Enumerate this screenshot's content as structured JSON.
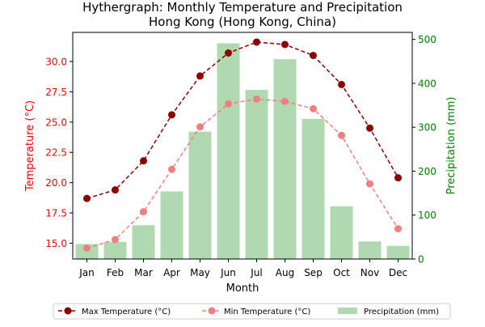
{
  "chart_data": {
    "type": "bar+line",
    "title_line1": "Hythergraph: Monthly Temperature and Precipitation",
    "title_line2": "Hong Kong (Hong Kong, China)",
    "xlabel": "Month",
    "ylabel_left": "Temperature (°C)",
    "ylabel_right": "Precipitation (mm)",
    "categories": [
      "Jan",
      "Feb",
      "Mar",
      "Apr",
      "May",
      "Jun",
      "Jul",
      "Aug",
      "Sep",
      "Oct",
      "Nov",
      "Dec"
    ],
    "temp_axis": {
      "ylim": [
        13.7,
        32.4
      ],
      "ticks": [
        15.0,
        17.5,
        20.0,
        22.5,
        25.0,
        27.5,
        30.0
      ],
      "tick_labels": [
        "15.0",
        "17.5",
        "20.0",
        "22.5",
        "25.0",
        "27.5",
        "30.0"
      ]
    },
    "precip_axis": {
      "ylim": [
        0,
        516
      ],
      "ticks": [
        0,
        100,
        200,
        300,
        400,
        500
      ],
      "tick_labels": [
        "0",
        "100",
        "200",
        "300",
        "400",
        "500"
      ]
    },
    "series": [
      {
        "name": "Max Temperature (°C)",
        "axis": "temp",
        "kind": "line",
        "style": "dashed",
        "color": "#8b0000",
        "values": [
          18.7,
          19.4,
          21.8,
          25.6,
          28.8,
          30.7,
          31.6,
          31.4,
          30.5,
          28.1,
          24.5,
          20.4
        ]
      },
      {
        "name": "Min Temperature (°C)",
        "axis": "temp",
        "kind": "line",
        "style": "dashed",
        "color": "#f08080",
        "values": [
          14.6,
          15.3,
          17.6,
          21.1,
          24.6,
          26.5,
          26.9,
          26.7,
          26.1,
          23.9,
          19.9,
          16.2
        ]
      },
      {
        "name": "Precipitation (mm)",
        "axis": "precip",
        "kind": "bar",
        "color": "#b0d9b1",
        "values": [
          34,
          39,
          77,
          154,
          290,
          491,
          385,
          455,
          319,
          120,
          40,
          30
        ]
      }
    ],
    "legend": {
      "placement": "bottom-center",
      "columns": 3
    },
    "colors": {
      "left_axis": "#ff0000",
      "right_axis": "#008000",
      "text": "#000000"
    }
  }
}
